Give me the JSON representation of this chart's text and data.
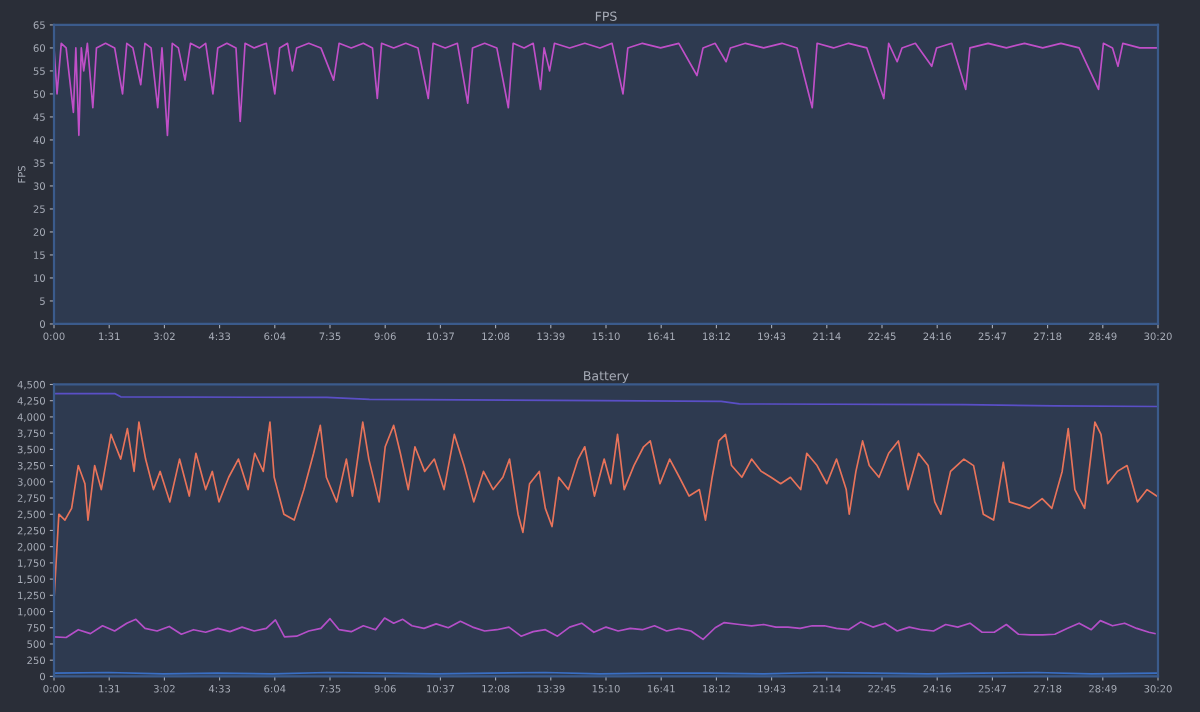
{
  "chart_data": [
    {
      "type": "line",
      "title": "FPS",
      "ylabel": "FPS",
      "xlim": [
        0,
        1820
      ],
      "ylim": [
        0,
        65
      ],
      "xticks": [
        {
          "value": 0,
          "label": "0:00"
        },
        {
          "value": 91,
          "label": "1:31"
        },
        {
          "value": 182,
          "label": "3:02"
        },
        {
          "value": 273,
          "label": "4:33"
        },
        {
          "value": 364,
          "label": "6:04"
        },
        {
          "value": 455,
          "label": "7:35"
        },
        {
          "value": 546,
          "label": "9:06"
        },
        {
          "value": 637,
          "label": "10:37"
        },
        {
          "value": 728,
          "label": "12:08"
        },
        {
          "value": 819,
          "label": "13:39"
        },
        {
          "value": 910,
          "label": "15:10"
        },
        {
          "value": 1001,
          "label": "16:41"
        },
        {
          "value": 1092,
          "label": "18:12"
        },
        {
          "value": 1183,
          "label": "19:43"
        },
        {
          "value": 1274,
          "label": "21:14"
        },
        {
          "value": 1365,
          "label": "22:45"
        },
        {
          "value": 1456,
          "label": "24:16"
        },
        {
          "value": 1547,
          "label": "25:47"
        },
        {
          "value": 1638,
          "label": "27:18"
        },
        {
          "value": 1729,
          "label": "28:49"
        },
        {
          "value": 1820,
          "label": "30:20"
        }
      ],
      "yticks": [
        0,
        5,
        10,
        15,
        20,
        25,
        30,
        35,
        40,
        45,
        50,
        55,
        60,
        65
      ],
      "grid": false,
      "marker": "none",
      "line_style": "solid",
      "series": [
        {
          "color": "#c04fc8",
          "x": [
            0,
            5,
            12,
            20,
            32,
            36,
            41,
            45,
            49,
            55,
            64,
            70,
            85,
            100,
            113,
            120,
            130,
            143,
            150,
            160,
            171,
            178,
            187,
            195,
            205,
            216,
            225,
            240,
            250,
            262,
            270,
            285,
            300,
            307,
            315,
            330,
            350,
            364,
            372,
            385,
            393,
            400,
            420,
            440,
            461,
            470,
            490,
            510,
            525,
            533,
            540,
            560,
            580,
            600,
            617,
            625,
            645,
            665,
            682,
            690,
            710,
            730,
            749,
            757,
            775,
            790,
            802,
            808,
            817,
            825,
            850,
            875,
            900,
            920,
            938,
            946,
            970,
            1000,
            1030,
            1060,
            1070,
            1090,
            1108,
            1115,
            1140,
            1170,
            1200,
            1225,
            1250,
            1258,
            1285,
            1310,
            1340,
            1368,
            1376,
            1390,
            1398,
            1420,
            1447,
            1455,
            1480,
            1503,
            1510,
            1540,
            1570,
            1600,
            1630,
            1660,
            1690,
            1722,
            1730,
            1745,
            1754,
            1762,
            1790,
            1820
          ],
          "values": [
            60,
            50,
            61,
            60,
            46,
            60,
            41,
            60,
            55,
            61,
            47,
            60,
            61,
            60,
            50,
            61,
            60,
            52,
            61,
            60,
            47,
            60,
            41,
            61,
            60,
            53,
            61,
            60,
            61,
            50,
            60,
            61,
            60,
            44,
            61,
            60,
            61,
            50,
            60,
            61,
            55,
            60,
            61,
            60,
            53,
            61,
            60,
            61,
            60,
            49,
            61,
            60,
            61,
            60,
            49,
            61,
            60,
            61,
            48,
            60,
            61,
            60,
            47,
            61,
            60,
            61,
            51,
            60,
            55,
            61,
            60,
            61,
            60,
            61,
            50,
            60,
            61,
            60,
            61,
            54,
            60,
            61,
            57,
            60,
            61,
            60,
            61,
            60,
            47,
            61,
            60,
            61,
            60,
            49,
            61,
            57,
            60,
            61,
            56,
            60,
            61,
            51,
            60,
            61,
            60,
            61,
            60,
            61,
            60,
            51,
            61,
            60,
            56,
            61,
            60,
            60
          ]
        }
      ]
    },
    {
      "type": "line",
      "title": "Battery",
      "xlim": [
        0,
        1820
      ],
      "ylim": [
        0,
        4500
      ],
      "xticks": [
        {
          "value": 0,
          "label": "0:00"
        },
        {
          "value": 91,
          "label": "1:31"
        },
        {
          "value": 182,
          "label": "3:02"
        },
        {
          "value": 273,
          "label": "4:33"
        },
        {
          "value": 364,
          "label": "6:04"
        },
        {
          "value": 455,
          "label": "7:35"
        },
        {
          "value": 546,
          "label": "9:06"
        },
        {
          "value": 637,
          "label": "10:37"
        },
        {
          "value": 728,
          "label": "12:08"
        },
        {
          "value": 819,
          "label": "13:39"
        },
        {
          "value": 910,
          "label": "15:10"
        },
        {
          "value": 1001,
          "label": "16:41"
        },
        {
          "value": 1092,
          "label": "18:12"
        },
        {
          "value": 1183,
          "label": "19:43"
        },
        {
          "value": 1274,
          "label": "21:14"
        },
        {
          "value": 1365,
          "label": "22:45"
        },
        {
          "value": 1456,
          "label": "24:16"
        },
        {
          "value": 1547,
          "label": "25:47"
        },
        {
          "value": 1638,
          "label": "27:18"
        },
        {
          "value": 1729,
          "label": "28:49"
        },
        {
          "value": 1820,
          "label": "30:20"
        }
      ],
      "yticks": [
        0,
        250,
        500,
        750,
        {
          "value": 1000,
          "label": "1,000"
        },
        {
          "value": 1250,
          "label": "1,250"
        },
        {
          "value": 1500,
          "label": "1,500"
        },
        {
          "value": 1750,
          "label": "1,750"
        },
        {
          "value": 2000,
          "label": "2,000"
        },
        {
          "value": 2250,
          "label": "2,250"
        },
        {
          "value": 2500,
          "label": "2,500"
        },
        {
          "value": 2750,
          "label": "2,750"
        },
        {
          "value": 3000,
          "label": "3,000"
        },
        {
          "value": 3250,
          "label": "3,250"
        },
        {
          "value": 3500,
          "label": "3,500"
        },
        {
          "value": 3750,
          "label": "3,750"
        },
        {
          "value": 4000,
          "label": "4,000"
        },
        {
          "value": 4250,
          "label": "4,250"
        },
        {
          "value": 4500,
          "label": "4,500"
        }
      ],
      "grid": false,
      "marker": "none",
      "line_style": "solid",
      "series": [
        {
          "color": "#e8735a",
          "x": [
            0,
            8,
            18,
            29,
            40,
            51,
            56,
            67,
            78,
            94,
            110,
            121,
            132,
            140,
            151,
            164,
            175,
            191,
            207,
            223,
            234,
            250,
            261,
            272,
            288,
            304,
            320,
            331,
            345,
            356,
            363,
            379,
            396,
            412,
            428,
            439,
            449,
            466,
            482,
            492,
            509,
            519,
            536,
            546,
            560,
            571,
            584,
            595,
            611,
            627,
            643,
            660,
            676,
            692,
            708,
            724,
            740,
            751,
            765,
            773,
            784,
            800,
            810,
            821,
            832,
            848,
            864,
            875,
            891,
            907,
            918,
            929,
            940,
            956,
            972,
            983,
            999,
            1015,
            1031,
            1047,
            1064,
            1074,
            1085,
            1096,
            1107,
            1117,
            1134,
            1150,
            1166,
            1182,
            1198,
            1214,
            1231,
            1241,
            1258,
            1274,
            1290,
            1306,
            1311,
            1322,
            1333,
            1344,
            1360,
            1376,
            1392,
            1408,
            1425,
            1441,
            1452,
            1462,
            1478,
            1500,
            1516,
            1532,
            1549,
            1565,
            1575,
            1592,
            1608,
            1629,
            1645,
            1662,
            1672,
            1683,
            1699,
            1716,
            1726,
            1737,
            1753,
            1769,
            1786,
            1802,
            1818
          ],
          "values": [
            1180,
            2500,
            2410,
            2590,
            3250,
            2970,
            2410,
            3250,
            2880,
            3730,
            3350,
            3820,
            3160,
            3920,
            3350,
            2880,
            3160,
            2690,
            3350,
            2780,
            3440,
            2880,
            3160,
            2690,
            3070,
            3350,
            2880,
            3440,
            3160,
            3920,
            3070,
            2500,
            2410,
            2880,
            3440,
            3870,
            3070,
            2690,
            3350,
            2780,
            3920,
            3350,
            2690,
            3540,
            3870,
            3440,
            2880,
            3540,
            3160,
            3350,
            2880,
            3730,
            3250,
            2690,
            3160,
            2880,
            3070,
            3350,
            2500,
            2220,
            2970,
            3160,
            2590,
            2310,
            3070,
            2880,
            3350,
            3540,
            2780,
            3350,
            2970,
            3730,
            2880,
            3250,
            3540,
            3630,
            2970,
            3350,
            3070,
            2780,
            2880,
            2410,
            3070,
            3630,
            3730,
            3250,
            3070,
            3350,
            3160,
            3070,
            2970,
            3070,
            2880,
            3440,
            3250,
            2970,
            3350,
            2880,
            2500,
            3160,
            3630,
            3250,
            3070,
            3440,
            3630,
            2880,
            3440,
            3250,
            2690,
            2500,
            3160,
            3350,
            3250,
            2500,
            2410,
            3300,
            2690,
            2640,
            2590,
            2740,
            2590,
            3160,
            3820,
            2880,
            2590,
            3920,
            3730,
            2970,
            3160,
            3250,
            2690,
            2880,
            2780
          ]
        },
        {
          "color": "#3a6fc4",
          "x": [
            0,
            90,
            180,
            270,
            360,
            450,
            540,
            630,
            720,
            810,
            900,
            990,
            1080,
            1170,
            1260,
            1350,
            1440,
            1530,
            1620,
            1710,
            1818
          ],
          "values": [
            50,
            60,
            40,
            50,
            40,
            60,
            50,
            40,
            50,
            60,
            40,
            50,
            50,
            40,
            60,
            50,
            40,
            50,
            60,
            40,
            50
          ]
        },
        {
          "color": "#5a4fc6",
          "x": [
            0,
            100,
            110,
            450,
            520,
            900,
            1100,
            1130,
            1500,
            1650,
            1820
          ],
          "values": [
            4360,
            4360,
            4310,
            4300,
            4270,
            4250,
            4240,
            4200,
            4190,
            4170,
            4160
          ]
        },
        {
          "color": "#b44fc8",
          "x": [
            0,
            20,
            40,
            60,
            80,
            100,
            120,
            135,
            150,
            170,
            190,
            210,
            230,
            250,
            270,
            290,
            310,
            330,
            350,
            365,
            380,
            400,
            420,
            440,
            455,
            470,
            490,
            510,
            530,
            545,
            560,
            575,
            590,
            610,
            630,
            650,
            670,
            690,
            710,
            730,
            750,
            770,
            790,
            810,
            830,
            850,
            870,
            890,
            910,
            930,
            950,
            970,
            990,
            1010,
            1030,
            1050,
            1070,
            1090,
            1105,
            1130,
            1150,
            1170,
            1190,
            1210,
            1230,
            1250,
            1270,
            1290,
            1310,
            1330,
            1350,
            1370,
            1390,
            1410,
            1430,
            1450,
            1470,
            1490,
            1510,
            1530,
            1550,
            1570,
            1590,
            1610,
            1630,
            1650,
            1670,
            1690,
            1710,
            1725,
            1745,
            1765,
            1785,
            1805,
            1815
          ],
          "values": [
            610,
            600,
            720,
            660,
            780,
            700,
            820,
            880,
            740,
            700,
            770,
            650,
            720,
            680,
            740,
            690,
            760,
            700,
            740,
            870,
            610,
            620,
            700,
            740,
            890,
            720,
            690,
            780,
            720,
            900,
            820,
            880,
            780,
            740,
            810,
            750,
            850,
            760,
            700,
            720,
            760,
            620,
            690,
            720,
            620,
            760,
            820,
            680,
            760,
            700,
            740,
            720,
            780,
            700,
            740,
            700,
            570,
            750,
            830,
            800,
            780,
            800,
            760,
            760,
            740,
            780,
            780,
            740,
            720,
            840,
            760,
            820,
            700,
            760,
            720,
            700,
            800,
            760,
            820,
            680,
            680,
            800,
            650,
            640,
            640,
            650,
            740,
            820,
            720,
            860,
            780,
            820,
            740,
            680,
            660
          ]
        }
      ]
    }
  ]
}
